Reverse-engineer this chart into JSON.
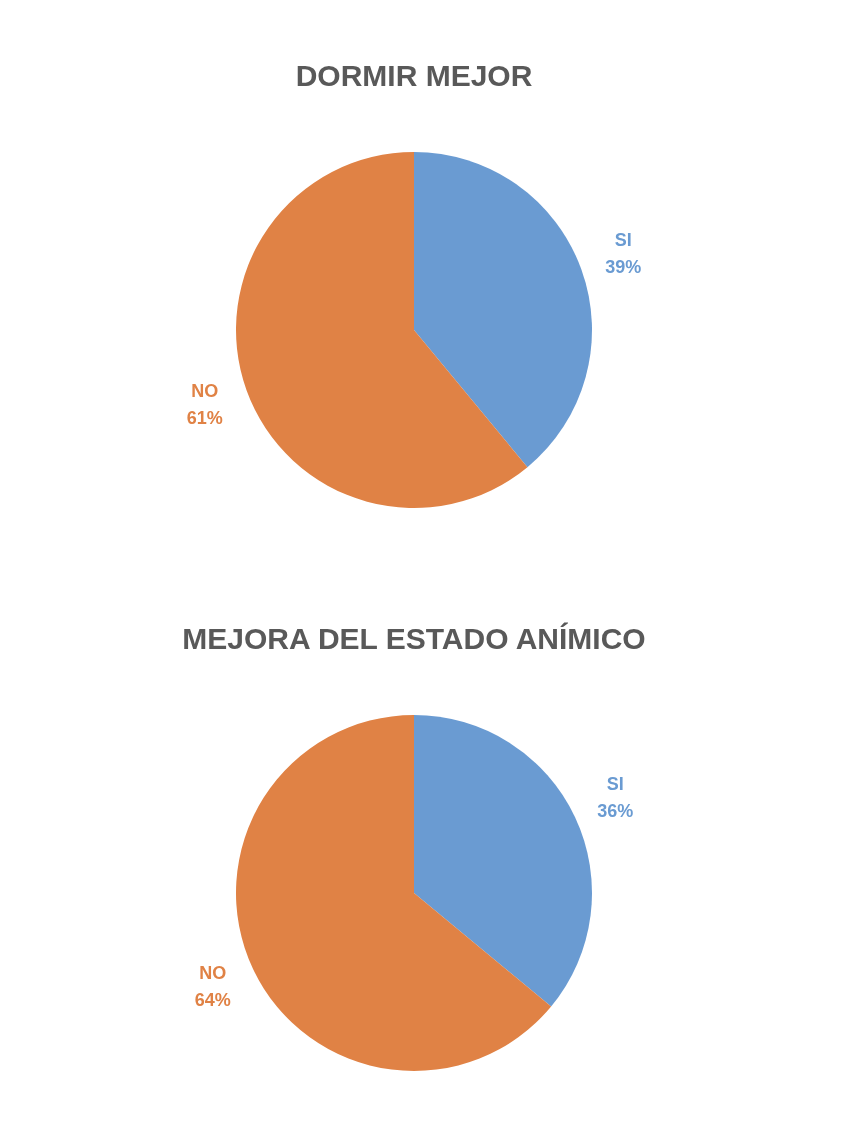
{
  "chart_data": [
    {
      "type": "pie",
      "title": "DORMIR MEJOR",
      "categories": [
        "SI",
        "NO"
      ],
      "values": [
        39,
        61
      ],
      "colors": [
        "#6a9bd2",
        "#e08245"
      ],
      "value_labels": [
        "39%",
        "61%"
      ]
    },
    {
      "type": "pie",
      "title": "MEJORA DEL ESTADO ANÍMICO",
      "categories": [
        "SI",
        "NO"
      ],
      "values": [
        36,
        64
      ],
      "colors": [
        "#6a9bd2",
        "#e08245"
      ],
      "value_labels": [
        "36%",
        "64%"
      ]
    }
  ]
}
